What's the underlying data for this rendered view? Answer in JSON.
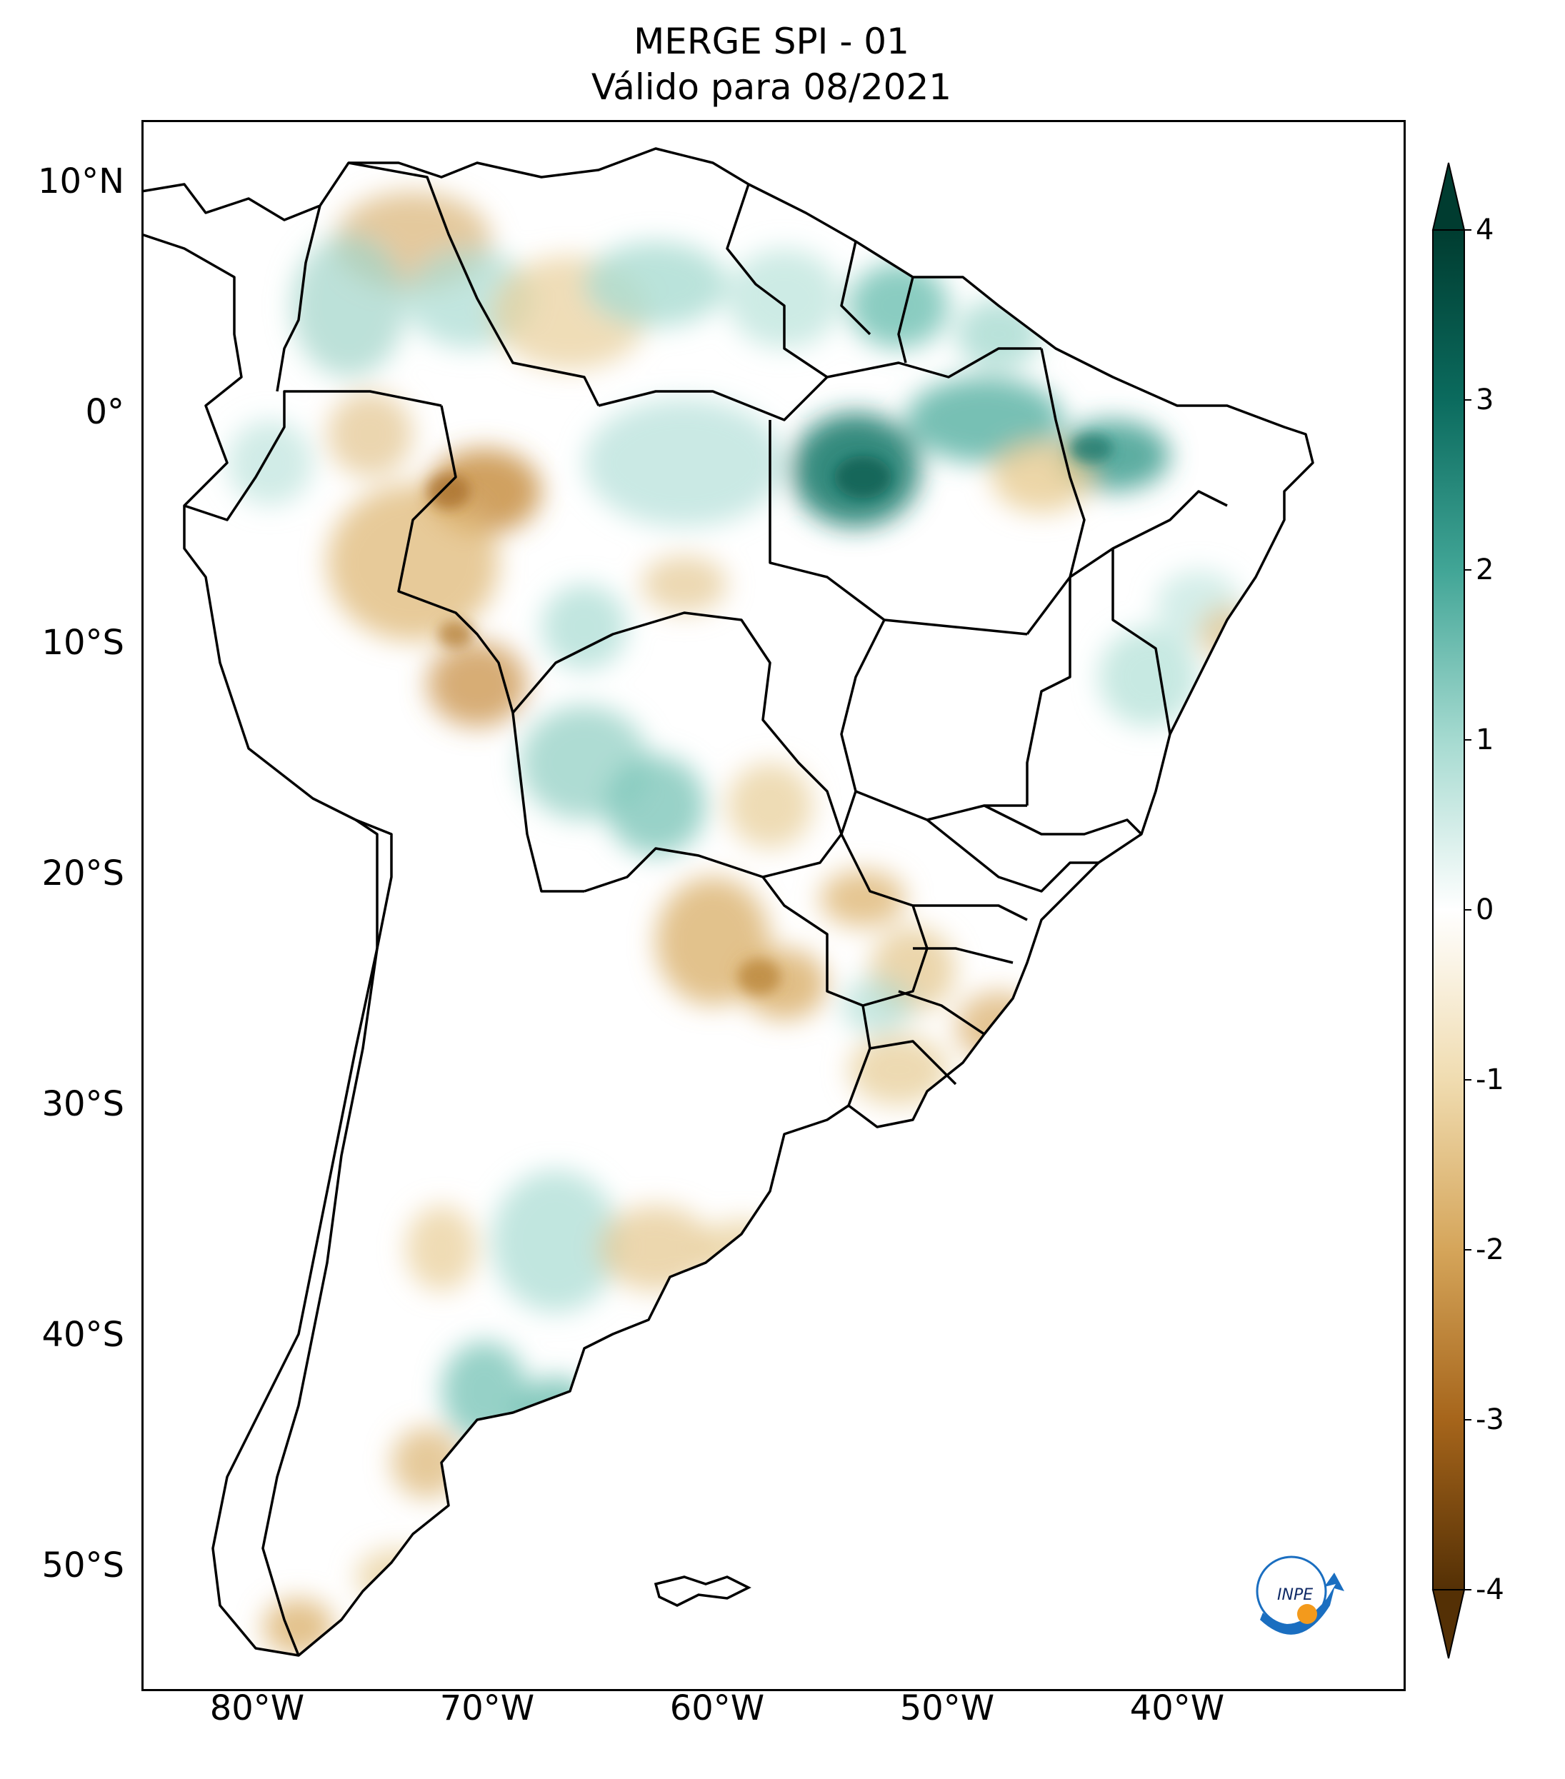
{
  "title": {
    "line1": "MERGE   SPI - 01",
    "line2": "Válido para 08/2021"
  },
  "axes": {
    "lat_ticks": [
      "10°N",
      "0°",
      "10°S",
      "20°S",
      "30°S",
      "40°S",
      "50°S"
    ],
    "lon_ticks": [
      "80°W",
      "70°W",
      "60°W",
      "50°W",
      "40°W"
    ]
  },
  "colorbar": {
    "ticks": [
      "4",
      "3",
      "2",
      "1",
      "0",
      "-1",
      "-2",
      "-3",
      "-4"
    ],
    "colors": {
      "p4": "#003c30",
      "p3": "#0b6b5e",
      "p2": "#41a596",
      "p1": "#a5dad0",
      "zero": "#ffffff",
      "m1": "#f0dcb0",
      "m2": "#d5a55a",
      "m3": "#a6651b",
      "m4": "#543005"
    }
  },
  "logo": {
    "text": "INPE"
  },
  "colors": {
    "positive": "#2a8d7e",
    "negative": "#c48a37",
    "border": "#000000"
  }
}
